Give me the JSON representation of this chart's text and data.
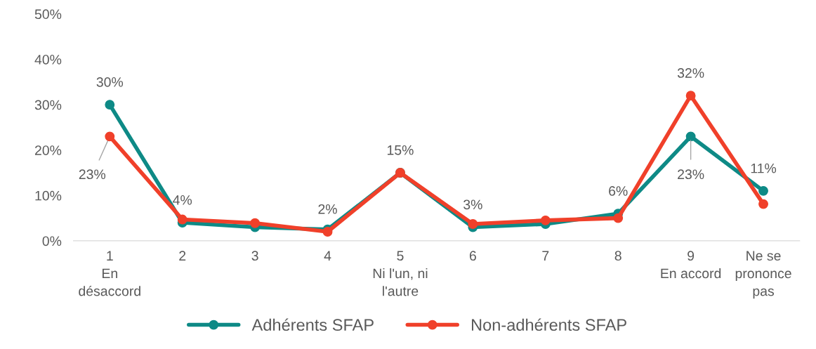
{
  "chart_data": {
    "type": "line",
    "categories": [
      "1\nEn\ndésaccord",
      "2",
      "3",
      "4",
      "5\nNi l'un, ni\nl'autre",
      "6",
      "7",
      "8",
      "9\nEn accord",
      "Ne se\nprononce\npas"
    ],
    "series": [
      {
        "name": "Adhérents SFAP",
        "color": "#0e8a86",
        "values": [
          30,
          4,
          3,
          2.5,
          15,
          3,
          3.7,
          6,
          23,
          11
        ],
        "value_labels": [
          "30%",
          "4%",
          null,
          null,
          "15%",
          "3%",
          null,
          "6%",
          "23%",
          "11%"
        ]
      },
      {
        "name": "Non-adhérents SFAP",
        "color": "#f0402a",
        "values": [
          23,
          4.7,
          3.9,
          2,
          15,
          3.7,
          4.5,
          5,
          32,
          8.1
        ],
        "value_labels": [
          "23%",
          null,
          null,
          "2%",
          null,
          null,
          null,
          null,
          "32%",
          null
        ]
      }
    ],
    "ylim": [
      0,
      50
    ],
    "yticks": [
      {
        "value": 0,
        "label": "0%"
      },
      {
        "value": 10,
        "label": "10%"
      },
      {
        "value": 20,
        "label": "20%"
      },
      {
        "value": 30,
        "label": "30%"
      },
      {
        "value": 40,
        "label": "40%"
      },
      {
        "value": 50,
        "label": "50%"
      }
    ],
    "grid": false,
    "legend": "bottom",
    "marker": "circle",
    "line_style": "solid"
  }
}
